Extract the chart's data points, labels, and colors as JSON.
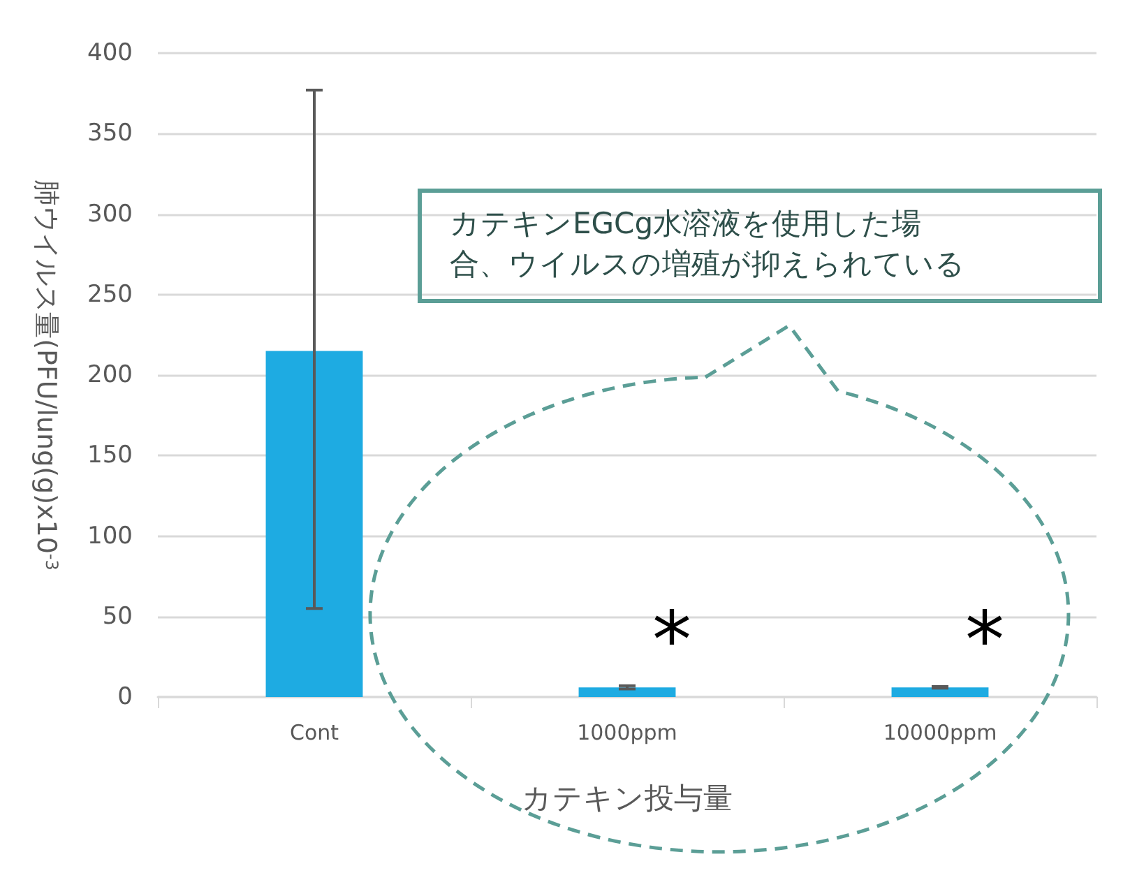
{
  "chart_data": {
    "type": "bar",
    "ylabel": "肺ウイルス量(PFU/lung(g)x10$^{-3}$",
    "xlabel": "カテキン投与量",
    "categories": [
      "Cont",
      "1000ppm",
      "10000ppm"
    ],
    "values": [
      215,
      6,
      6
    ],
    "errors": [
      [
        55,
        377
      ],
      1,
      0.5
    ],
    "color": "#1eabe2",
    "ylim": [
      0,
      400
    ],
    "yticks": [
      0,
      50,
      100,
      150,
      200,
      250,
      300,
      350,
      400
    ],
    "grid": "y",
    "annotations": [
      "カテキンEGCg水溶液を使用した場合、ウイルスの増殖が抑えられている",
      "*",
      "*"
    ]
  }
}
